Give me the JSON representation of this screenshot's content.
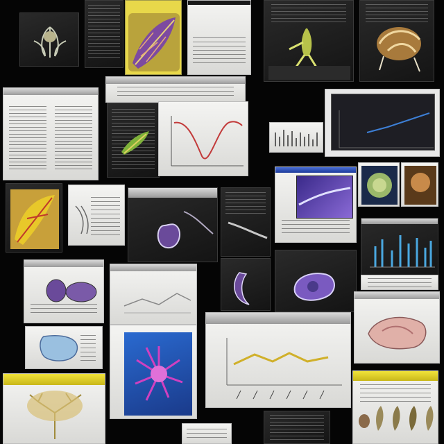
{
  "tiles": {}
}
